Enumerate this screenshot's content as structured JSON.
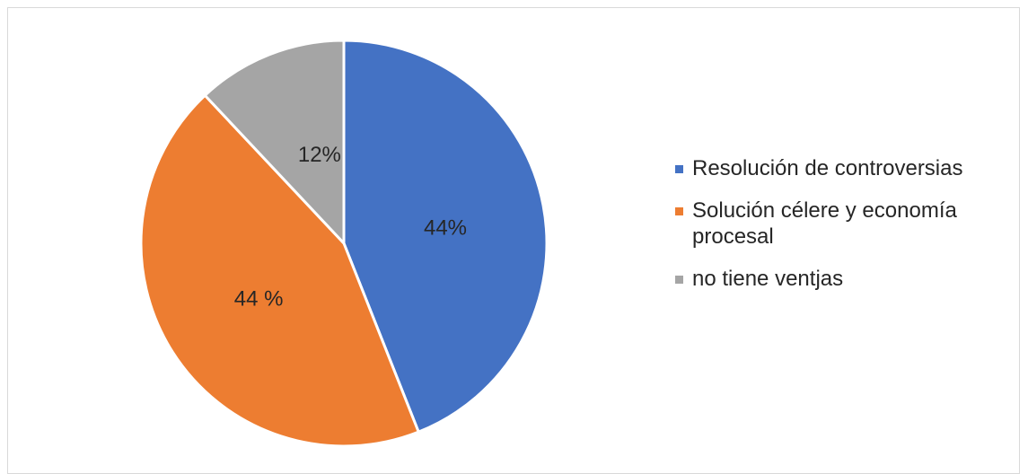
{
  "chart_data": {
    "type": "pie",
    "title": "",
    "slices": [
      {
        "name": "Resolución de controversias",
        "value": 44,
        "label": "44%",
        "color": "#4472C4"
      },
      {
        "name": "Solución célere y economía procesal",
        "value": 44,
        "label": "44 %",
        "color": "#ED7D31"
      },
      {
        "name": "no tiene ventjas",
        "value": 12,
        "label": "12%",
        "color": "#A5A5A5"
      }
    ],
    "start_angle_deg": 0,
    "direction": "clockwise",
    "legend_position": "right"
  }
}
